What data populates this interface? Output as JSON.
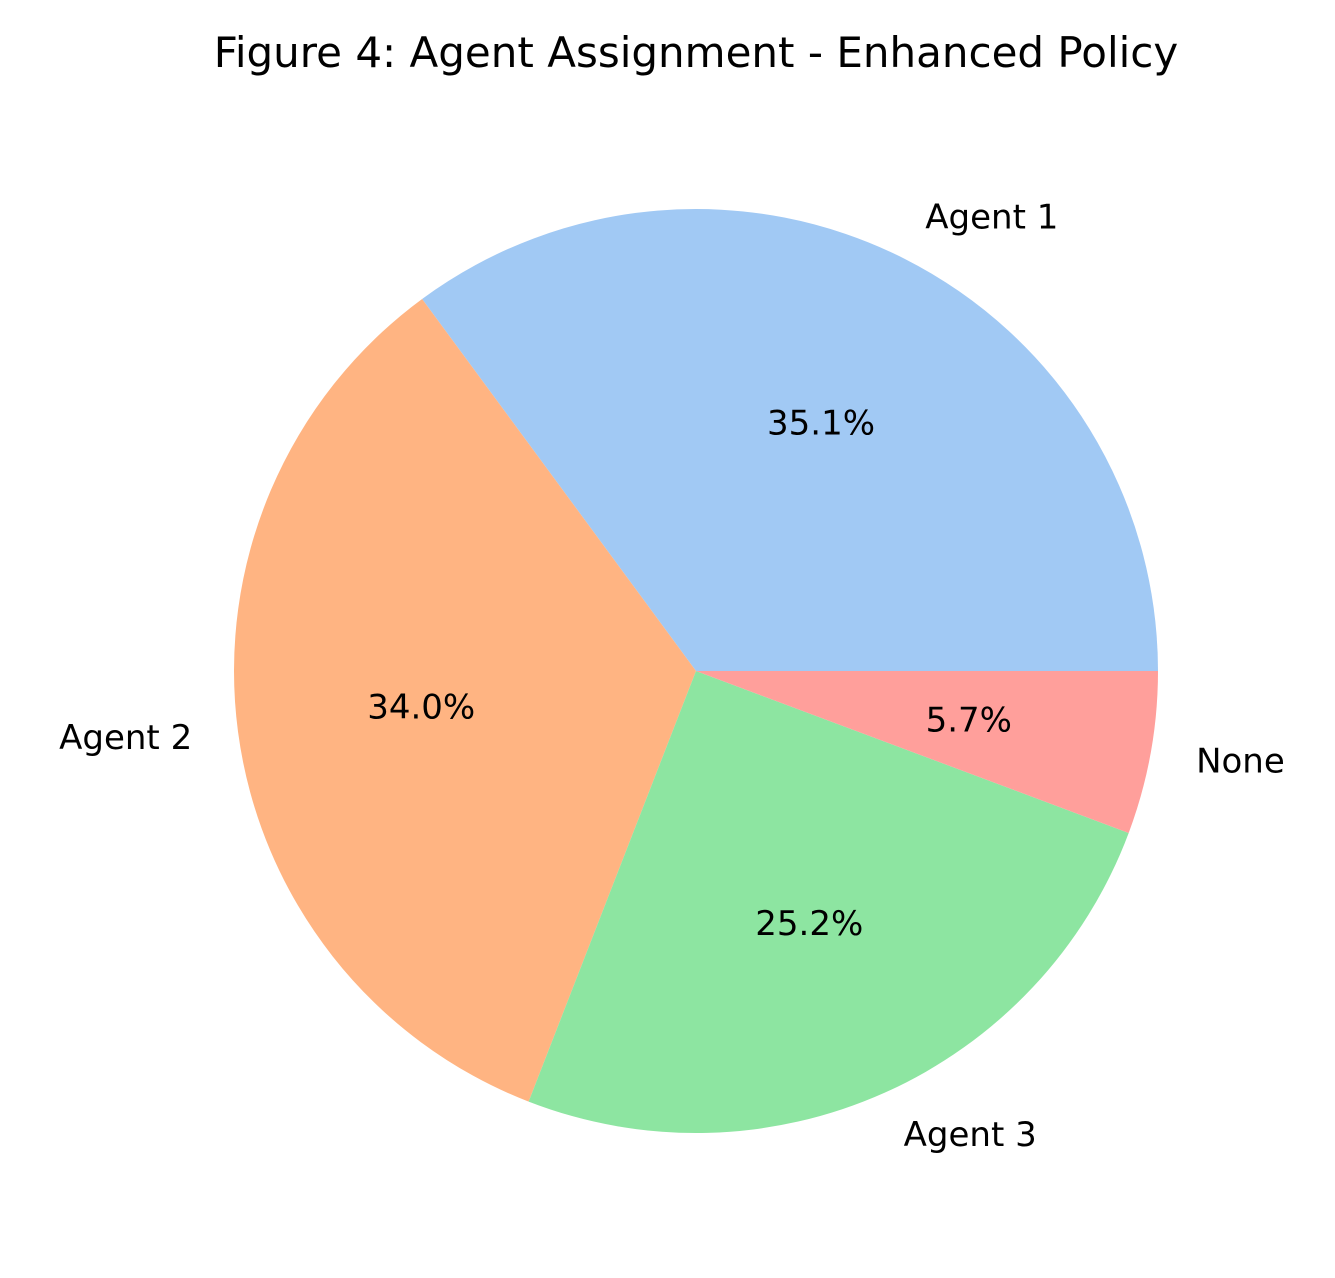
{
  "chart_data": {
    "type": "pie",
    "title": "Figure 4: Agent Assignment - Enhanced Policy",
    "categories": [
      "Agent 1",
      "Agent 2",
      "Agent 3",
      "None"
    ],
    "values": [
      35.1,
      34.0,
      25.2,
      5.7
    ],
    "value_labels": [
      "35.1%",
      "34.0%",
      "25.2%",
      "5.7%"
    ],
    "colors": [
      "#a1c9f4",
      "#ffb482",
      "#8de5a1",
      "#ff9f9b"
    ],
    "start_angle_deg": 0,
    "direction": "counterclockwise",
    "legend": "none"
  }
}
